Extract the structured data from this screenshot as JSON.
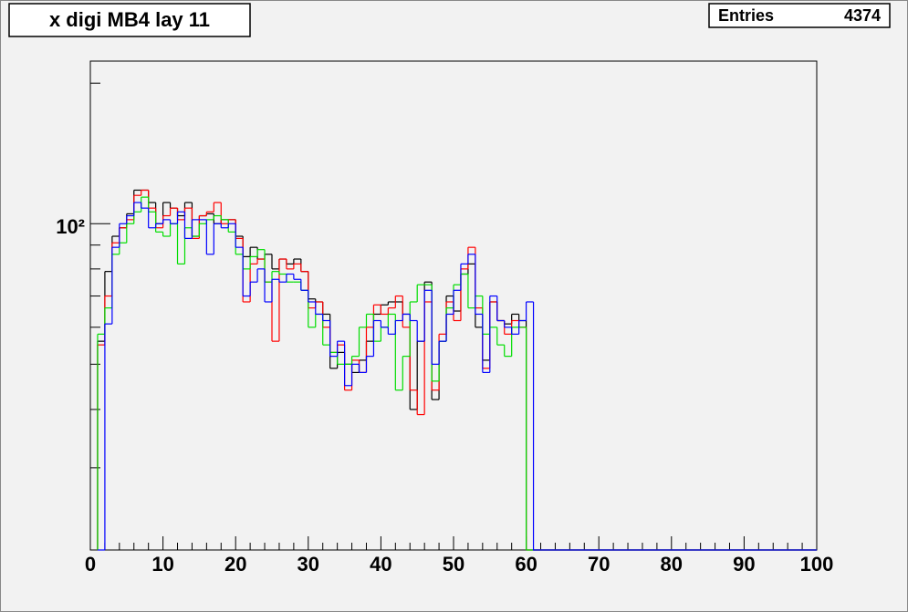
{
  "chart_data": {
    "type": "histogram",
    "title": "x digi MB4 lay 11",
    "stats": {
      "label": "Entries",
      "value": 4374
    },
    "log_y": true,
    "xlim": [
      0,
      100
    ],
    "ylim": [
      20,
      223
    ],
    "xticks": [
      0,
      10,
      20,
      30,
      40,
      50,
      60,
      70,
      80,
      90,
      100
    ],
    "xminorticks": [
      2,
      4,
      6,
      8,
      12,
      14,
      16,
      18,
      22,
      24,
      26,
      28,
      32,
      34,
      36,
      38,
      42,
      44,
      46,
      48,
      52,
      54,
      56,
      58,
      62,
      64,
      66,
      68,
      72,
      74,
      76,
      78,
      82,
      84,
      86,
      88,
      92,
      94,
      96,
      98
    ],
    "yticks": [
      {
        "value": 100,
        "label": "10²"
      }
    ],
    "yminorticks": [
      20,
      30,
      40,
      50,
      60,
      70,
      80,
      90,
      200
    ],
    "bins": [
      1,
      2,
      3,
      4,
      5,
      6,
      7,
      8,
      9,
      10,
      11,
      12,
      13,
      14,
      15,
      16,
      17,
      18,
      19,
      20,
      21,
      22,
      23,
      24,
      25,
      26,
      27,
      28,
      29,
      30,
      31,
      32,
      33,
      34,
      35,
      36,
      37,
      38,
      39,
      40,
      41,
      42,
      43,
      44,
      45,
      46,
      47,
      48,
      49,
      50,
      51,
      52,
      53,
      54,
      55,
      56,
      57,
      58,
      59,
      60,
      61
    ],
    "series": [
      {
        "color": "#000000",
        "values": [
          56,
          79,
          94,
          98,
          105,
          118,
          118,
          111,
          100,
          111,
          108,
          104,
          111,
          94,
          104,
          105,
          100,
          102,
          102,
          94,
          85,
          89,
          84,
          86,
          80,
          84,
          82,
          84,
          79,
          69,
          68,
          64,
          49,
          53,
          50,
          48,
          51,
          56,
          64,
          67,
          68,
          68,
          64,
          40,
          56,
          75,
          42,
          56,
          70,
          65,
          78,
          82,
          60,
          51,
          68,
          62,
          61,
          64,
          62,
          0
        ]
      },
      {
        "color": "#ff0000",
        "values": [
          55,
          70,
          91,
          98,
          102,
          115,
          118,
          108,
          98,
          104,
          108,
          102,
          108,
          93,
          104,
          106,
          111,
          100,
          102,
          93,
          68,
          82,
          84,
          75,
          56,
          84,
          80,
          82,
          79,
          66,
          68,
          60,
          53,
          55,
          44,
          51,
          48,
          60,
          67,
          64,
          66,
          70,
          60,
          44,
          39,
          68,
          44,
          58,
          68,
          62,
          80,
          89,
          66,
          49,
          68,
          62,
          58,
          62,
          60,
          0
        ]
      },
      {
        "color": "#00dd00",
        "values": [
          58,
          66,
          86,
          91,
          100,
          106,
          114,
          106,
          96,
          94,
          100,
          82,
          98,
          94,
          100,
          102,
          104,
          102,
          96,
          86,
          80,
          85,
          88,
          75,
          79,
          78,
          75,
          75,
          72,
          60,
          64,
          55,
          53,
          50,
          50,
          52,
          60,
          64,
          56,
          60,
          64,
          44,
          52,
          68,
          74,
          74,
          46,
          56,
          66,
          74,
          78,
          66,
          70,
          58,
          60,
          55,
          52,
          60,
          60,
          0
        ]
      },
      {
        "color": "#0000ff",
        "values": [
          0,
          61,
          89,
          100,
          104,
          111,
          108,
          98,
          100,
          102,
          100,
          106,
          93,
          102,
          102,
          86,
          100,
          98,
          100,
          89,
          70,
          75,
          80,
          68,
          76,
          75,
          78,
          76,
          72,
          68,
          64,
          62,
          52,
          56,
          45,
          50,
          48,
          52,
          62,
          60,
          58,
          62,
          64,
          62,
          56,
          72,
          50,
          56,
          64,
          72,
          82,
          86,
          64,
          48,
          70,
          62,
          60,
          58,
          62,
          68
        ]
      }
    ]
  }
}
